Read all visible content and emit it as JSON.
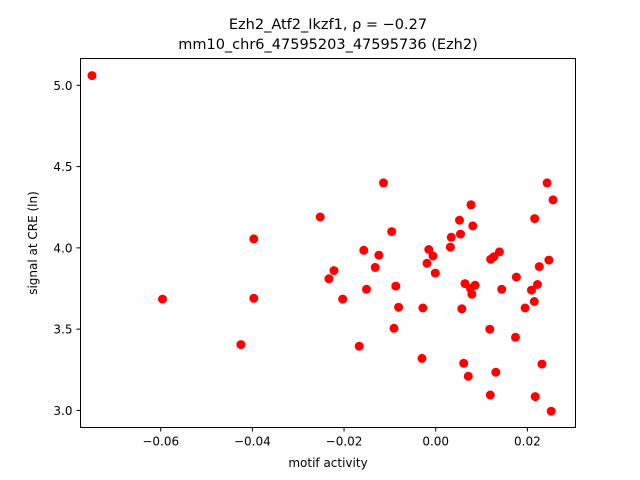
{
  "chart_data": {
    "type": "scatter",
    "title_line1": "Ezh2_Atf2_Ikzf1, ρ = −0.27",
    "title_line2": "mm10_chr6_47595203_47595736 (Ezh2)",
    "xlabel": "motif activity",
    "ylabel": "signal at CRE (ln)",
    "xlim": [
      -0.0775,
      0.0305
    ],
    "ylim": [
      2.895,
      5.165
    ],
    "x_ticks": [
      -0.06,
      -0.04,
      -0.02,
      0.0,
      0.02
    ],
    "x_tick_labels": [
      "−0.06",
      "−0.04",
      "−0.02",
      "0.00",
      "0.02"
    ],
    "y_ticks": [
      3.0,
      3.5,
      4.0,
      4.5,
      5.0
    ],
    "y_tick_labels": [
      "3.0",
      "3.5",
      "4.0",
      "4.5",
      "5.0"
    ],
    "grid": false,
    "marker_color": "#ff0000",
    "points": [
      [
        -0.075,
        5.06
      ],
      [
        -0.0596,
        3.685
      ],
      [
        -0.0425,
        3.405
      ],
      [
        -0.0397,
        4.055
      ],
      [
        -0.0397,
        3.69
      ],
      [
        -0.0252,
        4.19
      ],
      [
        -0.0233,
        3.81
      ],
      [
        -0.0222,
        3.86
      ],
      [
        -0.0203,
        3.685
      ],
      [
        -0.0167,
        3.395
      ],
      [
        -0.0157,
        3.985
      ],
      [
        -0.0151,
        3.745
      ],
      [
        -0.0132,
        3.88
      ],
      [
        -0.0124,
        3.955
      ],
      [
        -0.0114,
        4.4
      ],
      [
        -0.0096,
        4.1
      ],
      [
        -0.0091,
        3.505
      ],
      [
        -0.0087,
        3.765
      ],
      [
        -0.0081,
        3.635
      ],
      [
        -0.003,
        3.32
      ],
      [
        -0.0028,
        3.63
      ],
      [
        -0.0019,
        3.905
      ],
      [
        -0.0015,
        3.99
      ],
      [
        -0.0006,
        3.95
      ],
      [
        -0.0001,
        3.845
      ],
      [
        0.0032,
        4.005
      ],
      [
        0.0034,
        4.065
      ],
      [
        0.0052,
        4.17
      ],
      [
        0.0054,
        4.085
      ],
      [
        0.0057,
        3.625
      ],
      [
        0.0061,
        3.29
      ],
      [
        0.0064,
        3.78
      ],
      [
        0.0071,
        3.21
      ],
      [
        0.0076,
        3.75
      ],
      [
        0.0077,
        4.265
      ],
      [
        0.0079,
        3.715
      ],
      [
        0.0081,
        4.135
      ],
      [
        0.0086,
        3.77
      ],
      [
        0.0118,
        3.5
      ],
      [
        0.0119,
        3.095
      ],
      [
        0.012,
        3.93
      ],
      [
        0.0127,
        3.945
      ],
      [
        0.0131,
        3.235
      ],
      [
        0.0139,
        3.975
      ],
      [
        0.0144,
        3.745
      ],
      [
        0.0174,
        3.45
      ],
      [
        0.0176,
        3.82
      ],
      [
        0.0195,
        3.63
      ],
      [
        0.0209,
        3.74
      ],
      [
        0.0215,
        3.67
      ],
      [
        0.0216,
        4.18
      ],
      [
        0.0217,
        3.085
      ],
      [
        0.0222,
        3.775
      ],
      [
        0.0226,
        3.885
      ],
      [
        0.0232,
        3.285
      ],
      [
        0.0243,
        4.4
      ],
      [
        0.0247,
        3.925
      ],
      [
        0.0252,
        2.995
      ],
      [
        0.0256,
        4.295
      ]
    ]
  }
}
